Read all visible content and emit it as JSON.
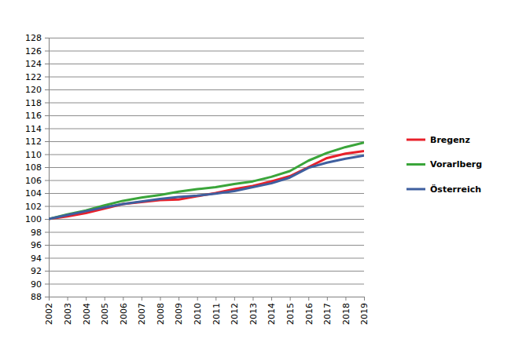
{
  "chart_data": {
    "type": "line",
    "x": [
      2002,
      2003,
      2004,
      2005,
      2006,
      2007,
      2008,
      2009,
      2010,
      2011,
      2012,
      2013,
      2014,
      2015,
      2016,
      2017,
      2018,
      2019
    ],
    "xlim": [
      2002,
      2019
    ],
    "xticks": [
      2002,
      2003,
      2004,
      2005,
      2006,
      2007,
      2008,
      2009,
      2010,
      2011,
      2012,
      2013,
      2014,
      2015,
      2016,
      2017,
      2018,
      2019
    ],
    "ylim": [
      88,
      128
    ],
    "yticks": [
      88,
      90,
      92,
      94,
      96,
      98,
      100,
      102,
      104,
      106,
      108,
      110,
      112,
      114,
      116,
      118,
      120,
      122,
      124,
      126,
      128
    ],
    "grid": true,
    "series": [
      {
        "name": "Bregenz",
        "color": "#e8202a",
        "values": [
          100,
          100.4,
          100.9,
          101.6,
          102.3,
          102.6,
          102.9,
          103.0,
          103.5,
          104.0,
          104.6,
          105.1,
          105.8,
          106.6,
          108.0,
          109.4,
          110.1,
          110.5
        ]
      },
      {
        "name": "Vorarlberg",
        "color": "#3aa53a",
        "values": [
          100,
          100.7,
          101.3,
          102.1,
          102.8,
          103.3,
          103.7,
          104.2,
          104.6,
          104.9,
          105.4,
          105.8,
          106.5,
          107.4,
          109.0,
          110.2,
          111.1,
          111.8
        ]
      },
      {
        "name": "Österreich",
        "color": "#3f5f9f",
        "values": [
          100,
          100.6,
          101.2,
          101.8,
          102.3,
          102.7,
          103.1,
          103.4,
          103.6,
          103.9,
          104.3,
          104.9,
          105.5,
          106.4,
          107.9,
          108.7,
          109.3,
          109.8
        ]
      }
    ]
  }
}
